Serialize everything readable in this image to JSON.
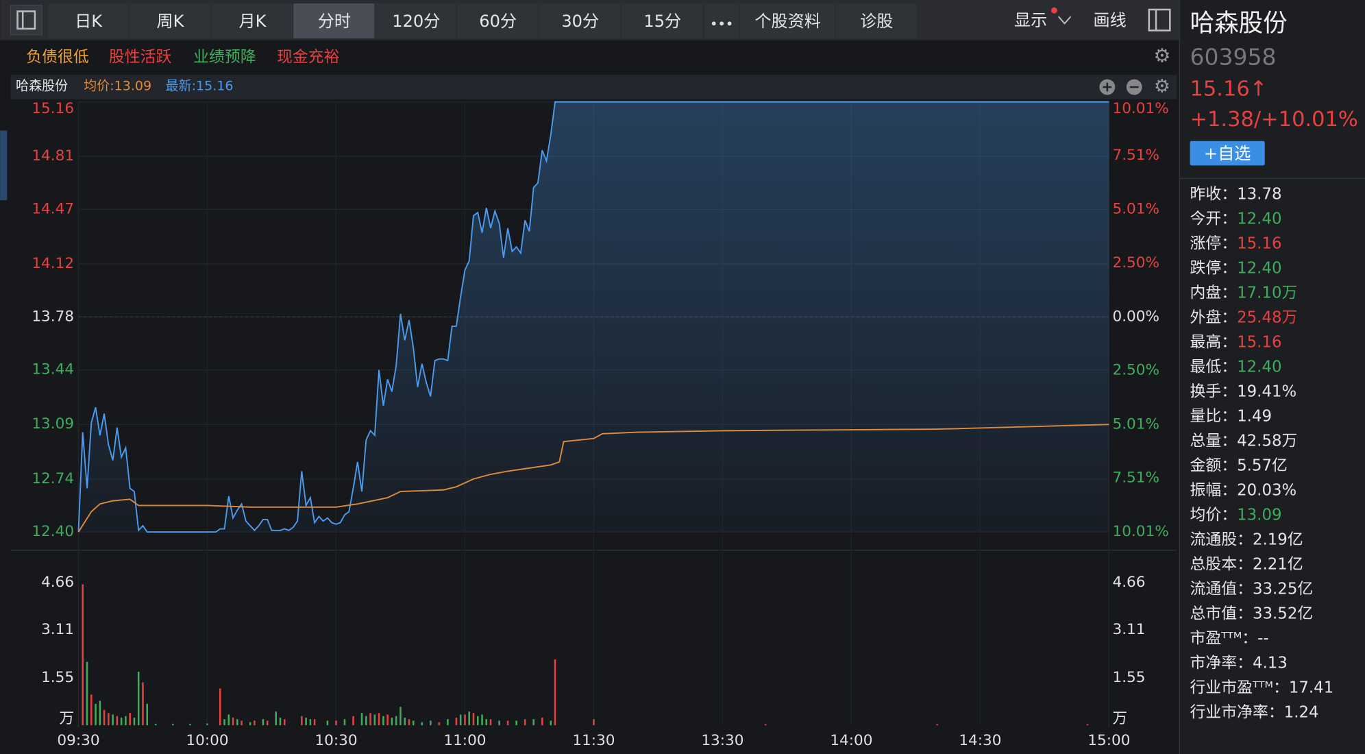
{
  "toolbar": {
    "tabs": [
      "日K",
      "周K",
      "月K",
      "分时",
      "120分",
      "60分",
      "30分",
      "15分",
      "个股资料",
      "诊股"
    ],
    "active": 3,
    "display": "显示",
    "draw": "画线"
  },
  "tags": [
    {
      "text": "负债很低",
      "color": "#f0a030"
    },
    {
      "text": "股性活跃",
      "color": "#e8413e"
    },
    {
      "text": "业绩预降",
      "color": "#3fae5a"
    },
    {
      "text": "现金充裕",
      "color": "#e8413e"
    }
  ],
  "quote": {
    "name": "哈森股份",
    "code": "603958",
    "price": "15.16↑",
    "change": "+1.38/+10.01%",
    "watch": "+自选"
  },
  "stats": [
    {
      "label": "昨收：",
      "value": "13.78",
      "color": "#e6e6e6"
    },
    {
      "label": "今开：",
      "value": "12.40",
      "color": "#3fae5a"
    },
    {
      "label": "涨停：",
      "value": "15.16",
      "color": "#e8413e"
    },
    {
      "label": "跌停：",
      "value": "12.40",
      "color": "#3fae5a"
    },
    {
      "label": "内盘：",
      "value": "17.10万",
      "color": "#3fae5a"
    },
    {
      "label": "外盘：",
      "value": "25.48万",
      "color": "#e8413e"
    },
    {
      "label": "最高：",
      "value": "15.16",
      "color": "#e8413e"
    },
    {
      "label": "最低：",
      "value": "12.40",
      "color": "#3fae5a"
    },
    {
      "label": "换手：",
      "value": "19.41%",
      "color": "#e6e6e6"
    },
    {
      "label": "量比：",
      "value": "1.49",
      "color": "#e6e6e6"
    },
    {
      "label": "总量：",
      "value": "42.58万",
      "color": "#e6e6e6"
    },
    {
      "label": "金额：",
      "value": "5.57亿",
      "color": "#e6e6e6"
    },
    {
      "label": "振幅：",
      "value": "20.03%",
      "color": "#e6e6e6"
    },
    {
      "label": "均价：",
      "value": "13.09",
      "color": "#3fae5a"
    },
    {
      "label": "流通股：",
      "value": "2.19亿",
      "color": "#e6e6e6"
    },
    {
      "label": "总股本：",
      "value": "2.21亿",
      "color": "#e6e6e6"
    },
    {
      "label": "流通值：",
      "value": "33.25亿",
      "color": "#e6e6e6"
    },
    {
      "label": "总市值：",
      "value": "33.52亿",
      "color": "#e6e6e6"
    },
    {
      "label": "市盈ᵀᵀᴹ：",
      "value": "--",
      "color": "#e6e6e6"
    },
    {
      "label": "市净率：",
      "value": "4.13",
      "color": "#e6e6e6"
    },
    {
      "label": "行业市盈ᵀᵀᴹ：",
      "value": "17.41",
      "color": "#e6e6e6"
    },
    {
      "label": "行业市净率：",
      "value": "1.24",
      "color": "#e6e6e6"
    }
  ],
  "chart_data": [
    {
      "type": "line",
      "title": "哈森股份",
      "xlim": [
        0,
        240
      ],
      "ylim": [
        12.4,
        15.16
      ],
      "yticks": [
        15.16,
        14.81,
        14.47,
        14.12,
        13.78,
        13.44,
        13.09,
        12.74,
        {
          "value": 12.4,
          "label": "12.40"
        }
      ],
      "y2lim": [
        -10.01,
        10.01
      ],
      "y2ticks": [
        {
          "value": 10.01,
          "label": "10.01%"
        },
        {
          "value": 7.51,
          "label": "7.51%"
        },
        {
          "value": 5.01,
          "label": "5.01%"
        },
        {
          "value": 2.5,
          "label": "2.50%"
        },
        {
          "value": 0,
          "label": "0.00%"
        },
        {
          "value": -2.5,
          "label": "2.50%"
        },
        {
          "value": -5.01,
          "label": "5.01%"
        },
        {
          "value": -7.51,
          "label": "7.51%"
        },
        {
          "value": -10.01,
          "label": "10.01%"
        }
      ],
      "baseline": 13.78,
      "grid": true,
      "series": [
        {
          "name": "最新:15.16",
          "color": "#4a9cf0",
          "area": true,
          "x": [
            0,
            1,
            2,
            3,
            4,
            5,
            6,
            7,
            8,
            9,
            10,
            11,
            12,
            13,
            14,
            15,
            16,
            32,
            33,
            34,
            35,
            36,
            37,
            38,
            39,
            40,
            41,
            42,
            43,
            44,
            45,
            46,
            47,
            48,
            49,
            50,
            51,
            52,
            53,
            54,
            55,
            56,
            57,
            58,
            59,
            60,
            61,
            62,
            63,
            64,
            65,
            66,
            67,
            68,
            69,
            70,
            71,
            72,
            73,
            74,
            75,
            76,
            77,
            78,
            79,
            80,
            81,
            82,
            83,
            84,
            85,
            86,
            87,
            88,
            89,
            90,
            91,
            92,
            93,
            94,
            95,
            96,
            97,
            98,
            99,
            100,
            101,
            102,
            103,
            104,
            105,
            106,
            107,
            108,
            109,
            110,
            111,
            240
          ],
          "values": [
            12.4,
            13.04,
            12.68,
            13.1,
            13.2,
            13.02,
            13.16,
            12.96,
            12.86,
            13.07,
            12.88,
            12.94,
            12.68,
            12.66,
            12.41,
            12.44,
            12.4,
            12.4,
            12.42,
            12.42,
            12.63,
            12.49,
            12.54,
            12.58,
            12.47,
            12.44,
            12.41,
            12.44,
            12.48,
            12.48,
            12.41,
            12.41,
            12.41,
            12.42,
            12.41,
            12.43,
            12.47,
            12.79,
            12.57,
            12.62,
            12.46,
            12.5,
            12.47,
            12.49,
            12.46,
            12.45,
            12.46,
            12.51,
            12.53,
            12.68,
            12.85,
            12.66,
            12.99,
            13.05,
            13.02,
            13.44,
            13.21,
            13.38,
            13.3,
            13.47,
            13.8,
            13.63,
            13.76,
            13.58,
            13.33,
            13.48,
            13.36,
            13.27,
            13.5,
            13.51,
            13.51,
            13.5,
            13.72,
            13.72,
            13.91,
            14.08,
            14.14,
            14.43,
            14.45,
            14.32,
            14.48,
            14.35,
            14.46,
            14.38,
            14.16,
            14.35,
            14.2,
            14.23,
            14.19,
            14.4,
            14.33,
            14.61,
            14.64,
            14.85,
            14.78,
            14.95,
            15.16,
            15.16
          ]
        },
        {
          "name": "均价:13.09",
          "color": "#e08a3c",
          "x": [
            0,
            3,
            5,
            8,
            12,
            14,
            30,
            40,
            60,
            65,
            72,
            75,
            85,
            88,
            92,
            96,
            100,
            110,
            112,
            113,
            120,
            122,
            130,
            150,
            200,
            240
          ],
          "values": [
            12.4,
            12.53,
            12.58,
            12.6,
            12.61,
            12.57,
            12.57,
            12.56,
            12.56,
            12.58,
            12.62,
            12.66,
            12.67,
            12.69,
            12.74,
            12.77,
            12.79,
            12.83,
            12.85,
            12.98,
            13.0,
            13.03,
            13.04,
            13.05,
            13.06,
            13.09
          ]
        }
      ]
    },
    {
      "type": "bar",
      "xlim": [
        0,
        240
      ],
      "ylim": [
        0,
        4.66
      ],
      "yticks": [
        {
          "value": 0,
          "label": "万"
        },
        1.55,
        3.11,
        4.66
      ],
      "xticks": [
        {
          "value": 0,
          "label": "09:30"
        },
        {
          "value": 30,
          "label": "10:00"
        },
        {
          "value": 60,
          "label": "10:30"
        },
        {
          "value": 90,
          "label": "11:00"
        },
        {
          "value": 120,
          "label": "11:30"
        },
        {
          "value": 150,
          "label": "13:30"
        },
        {
          "value": 180,
          "label": "14:00"
        },
        {
          "value": 210,
          "label": "14:30"
        },
        {
          "value": 240,
          "label": "15:00"
        }
      ],
      "series": [
        {
          "color": "#e8413e",
          "x": [
            1,
            3,
            6,
            7,
            9,
            12,
            15,
            33,
            36,
            38,
            41,
            44,
            48,
            52,
            55,
            60,
            64,
            68,
            70,
            72,
            77,
            84,
            88,
            90,
            92,
            96,
            100,
            104,
            108,
            111,
            120,
            160,
            200,
            235
          ],
          "values": [
            4.6,
            1.0,
            0.5,
            0.4,
            0.3,
            0.4,
            1.4,
            1.2,
            0.25,
            0.15,
            0.15,
            0.15,
            0.2,
            0.3,
            0.2,
            0.15,
            0.3,
            0.4,
            0.4,
            0.35,
            0.2,
            0.1,
            0.25,
            0.35,
            0.4,
            0.2,
            0.15,
            0.2,
            0.25,
            2.15,
            0.2,
            0.04,
            0.04,
            0.04
          ]
        },
        {
          "color": "#3fae5a",
          "x": [
            2,
            4,
            5,
            8,
            10,
            11,
            13,
            14,
            16,
            18,
            22,
            26,
            30,
            34,
            35,
            37,
            40,
            43,
            46,
            47,
            53,
            54,
            58,
            62,
            66,
            67,
            69,
            71,
            73,
            74,
            75,
            76,
            78,
            80,
            82,
            86,
            89,
            91,
            93,
            94,
            95,
            98,
            102,
            106,
            110
          ],
          "values": [
            2.07,
            0.7,
            0.8,
            0.35,
            0.25,
            0.3,
            0.25,
            1.75,
            0.7,
            0.05,
            0.05,
            0.05,
            0.06,
            0.2,
            0.35,
            0.2,
            0.1,
            0.2,
            0.45,
            0.25,
            0.25,
            0.2,
            0.15,
            0.2,
            0.4,
            0.3,
            0.35,
            0.3,
            0.25,
            0.3,
            0.6,
            0.25,
            0.15,
            0.1,
            0.15,
            0.2,
            0.35,
            0.45,
            0.3,
            0.35,
            0.2,
            0.15,
            0.15,
            0.2,
            0.15
          ]
        }
      ]
    }
  ]
}
